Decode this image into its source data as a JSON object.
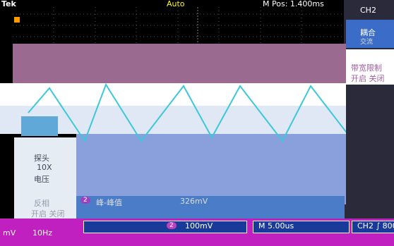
{
  "header": {
    "brand": "Tek",
    "trigger_mode": "Auto",
    "m_pos": "M Pos: 1.400ms"
  },
  "side_menu": {
    "channel": "CH2",
    "items": [
      {
        "label": "耦合",
        "value": "交流"
      },
      {
        "label": "带宽限制",
        "value": "开启 关闭"
      }
    ]
  },
  "left_menu": {
    "items": [
      {
        "label": "探头",
        "value": "10X",
        "sub": "电压"
      },
      {
        "label": "反相",
        "value": "开启 关闭"
      }
    ]
  },
  "measurement": {
    "channel": "2",
    "name": "峰-峰值",
    "value": "326mV"
  },
  "status_bar": {
    "channel": "2",
    "ch2_scale": "100mV",
    "timebase": "M 5.00us",
    "trigger": "CH2 ∫ 800",
    "left_scale": "mV",
    "freq": "10Hz"
  }
}
